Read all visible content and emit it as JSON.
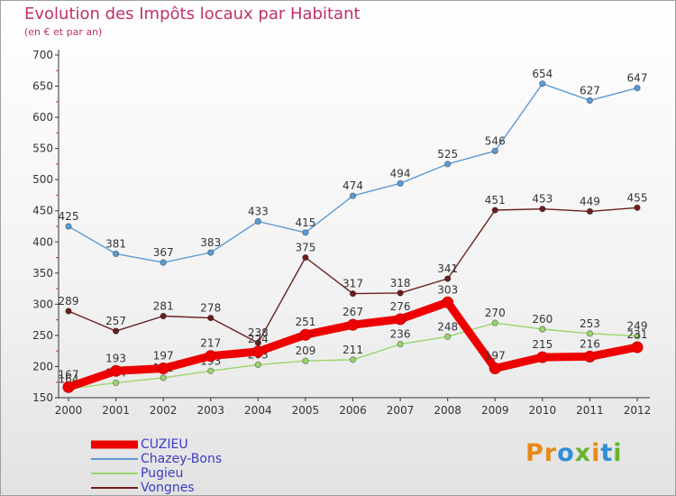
{
  "chart_data": {
    "type": "line",
    "title": "Evolution des Impôts locaux par Habitant",
    "subtitle": "(en € et par an)",
    "x": [
      2000,
      2001,
      2002,
      2003,
      2004,
      2005,
      2006,
      2007,
      2008,
      2009,
      2010,
      2011,
      2012
    ],
    "ylim": [
      150,
      700
    ],
    "yticks": [
      150,
      200,
      250,
      300,
      350,
      400,
      450,
      500,
      550,
      600,
      650,
      700
    ],
    "grid": false,
    "legend_position": "bottom-left",
    "series": [
      {
        "name": "Chazey-Bons",
        "color": "#5b9bd5",
        "values": [
          425,
          381,
          367,
          383,
          433,
          415,
          474,
          494,
          525,
          546,
          654,
          627,
          647
        ]
      },
      {
        "name": "Vongnes",
        "color": "#6b1e1e",
        "values": [
          289,
          257,
          281,
          278,
          238,
          375,
          317,
          318,
          341,
          451,
          453,
          449,
          455
        ]
      },
      {
        "name": "Pugieu",
        "color": "#9ad66e",
        "values": [
          164,
          174,
          182,
          193,
          203,
          209,
          211,
          236,
          248,
          270,
          260,
          253,
          249
        ]
      },
      {
        "name": "CUZIEU",
        "color": "#ee0000",
        "values": [
          167,
          193,
          197,
          217,
          224,
          251,
          267,
          276,
          303,
          197,
          215,
          216,
          231
        ]
      }
    ]
  },
  "legend": [
    {
      "name": "CUZIEU",
      "color": "#ee0000"
    },
    {
      "name": "Chazey-Bons",
      "color": "#5b9bd5"
    },
    {
      "name": "Pugieu",
      "color": "#9ad66e"
    },
    {
      "name": "Vongnes",
      "color": "#6b1e1e"
    }
  ],
  "logo": {
    "part1": "Pr",
    "part2": "o",
    "part3": "x",
    "part4": "i",
    "part5": "t",
    "part6": "i"
  }
}
